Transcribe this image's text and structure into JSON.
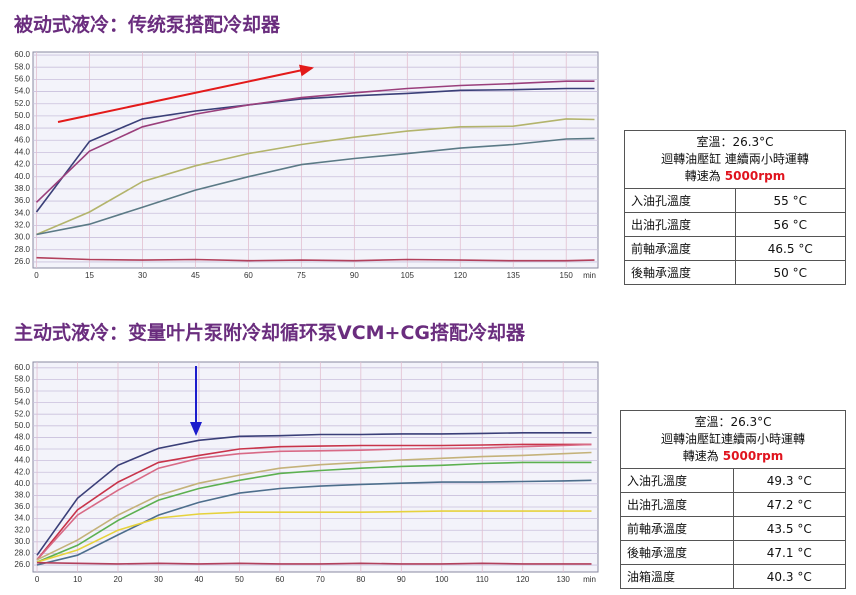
{
  "chart_data": [
    {
      "type": "line",
      "title": "被动式液冷：传统泵搭配冷却器",
      "xlabel": "min",
      "x": [
        0,
        15,
        30,
        45,
        60,
        75,
        90,
        105,
        120,
        135,
        150,
        158
      ],
      "xlim": [
        -1,
        159
      ],
      "xticks": [
        0,
        15,
        30,
        45,
        60,
        75,
        90,
        105,
        120,
        135,
        150
      ],
      "ylim": [
        25,
        60.5
      ],
      "yticks": [
        {
          "value": 26,
          "label": "26.0"
        },
        {
          "value": 28,
          "label": "28.0"
        },
        {
          "value": 30,
          "label": "30.0"
        },
        {
          "value": 32,
          "label": "32.0"
        },
        {
          "value": 34,
          "label": "34.0"
        },
        {
          "value": 36,
          "label": "36.0"
        },
        {
          "value": 38,
          "label": "38.0"
        },
        {
          "value": 40,
          "label": "40.0"
        },
        {
          "value": 42,
          "label": "42.0"
        },
        {
          "value": 44,
          "label": "44.0"
        },
        {
          "value": 46,
          "label": "46.0"
        },
        {
          "value": 48,
          "label": "48.0"
        },
        {
          "value": 50,
          "label": "50.0"
        },
        {
          "value": 52,
          "label": "52.0"
        },
        {
          "value": 54,
          "label": "54.0"
        },
        {
          "value": 56,
          "label": "56.0"
        },
        {
          "value": 58,
          "label": "58.0"
        },
        {
          "value": 60,
          "label": "60.0"
        }
      ],
      "grid": true,
      "series": [
        {
          "color": "#3a3f78",
          "values": [
            34.2,
            45.8,
            49.5,
            50.8,
            51.8,
            52.8,
            53.3,
            53.7,
            54.2,
            54.3,
            54.5,
            54.5
          ]
        },
        {
          "color": "#9a3f7c",
          "values": [
            35.8,
            44.2,
            48.2,
            50.3,
            51.8,
            53,
            53.8,
            54.5,
            55,
            55.3,
            55.7,
            55.7
          ]
        },
        {
          "color": "#b3b46c",
          "values": [
            30.5,
            34.2,
            39.2,
            41.8,
            43.8,
            45.3,
            46.5,
            47.5,
            48.2,
            48.3,
            49.5,
            49.4
          ]
        },
        {
          "color": "#5b7a86",
          "values": [
            30.5,
            32.2,
            35,
            37.8,
            40,
            42,
            43,
            43.8,
            44.7,
            45.3,
            46.2,
            46.3
          ]
        },
        {
          "color": "#b2405c",
          "values": [
            26.7,
            26.4,
            26.3,
            26.4,
            26.2,
            26.3,
            26.2,
            26.4,
            26.3,
            26.2,
            26.2,
            26.3
          ]
        }
      ]
    },
    {
      "type": "line",
      "title": "主动式液冷：变量叶片泵附冷却循环泵VCM+CG搭配冷却器",
      "xlabel": "min",
      "x": [
        0,
        10,
        20,
        30,
        40,
        50,
        60,
        70,
        80,
        90,
        100,
        110,
        120,
        130,
        137
      ],
      "xlim": [
        -1,
        138.6
      ],
      "xticks": [
        0,
        10,
        20,
        30,
        40,
        50,
        60,
        70,
        80,
        90,
        100,
        110,
        120,
        130
      ],
      "ylim": [
        24.8,
        61
      ],
      "yticks": [
        {
          "value": 26,
          "label": "26.0"
        },
        {
          "value": 28,
          "label": "28.0"
        },
        {
          "value": 30,
          "label": "30.0"
        },
        {
          "value": 32,
          "label": "32.0"
        },
        {
          "value": 34,
          "label": "34.0"
        },
        {
          "value": 36,
          "label": "36.0"
        },
        {
          "value": 38,
          "label": "38.0"
        },
        {
          "value": 40,
          "label": "40.0"
        },
        {
          "value": 42,
          "label": "42.0"
        },
        {
          "value": 44,
          "label": "44.0"
        },
        {
          "value": 46,
          "label": "46.0"
        },
        {
          "value": 48,
          "label": "48.0"
        },
        {
          "value": 50,
          "label": "50.0"
        },
        {
          "value": 52,
          "label": "52.0"
        },
        {
          "value": 54,
          "label": "54.0"
        },
        {
          "value": 56,
          "label": "56.0"
        },
        {
          "value": 58,
          "label": "58.0"
        },
        {
          "value": 60,
          "label": "60.0"
        }
      ],
      "grid": true,
      "series": [
        {
          "color": "#3a3f78",
          "values": [
            27.7,
            37.5,
            43.2,
            46.1,
            47.5,
            48.2,
            48.3,
            48.5,
            48.5,
            48.6,
            48.6,
            48.7,
            48.8,
            48.8,
            48.8
          ]
        },
        {
          "color": "#c8344a",
          "values": [
            26.9,
            35.5,
            40.3,
            43.7,
            44.9,
            46,
            46.4,
            46.5,
            46.6,
            46.6,
            46.6,
            46.7,
            46.8,
            46.8,
            46.8
          ]
        },
        {
          "color": "#d86a86",
          "values": [
            26.9,
            34.6,
            38.9,
            42.7,
            44.4,
            45.2,
            45.6,
            45.7,
            45.8,
            46,
            46.1,
            46.2,
            46.4,
            46.6,
            46.8
          ]
        },
        {
          "color": "#5cb050",
          "values": [
            26.5,
            29.4,
            33.7,
            37.2,
            39.2,
            40.6,
            41.8,
            42.3,
            42.7,
            43,
            43.2,
            43.5,
            43.7,
            43.7,
            43.7
          ]
        },
        {
          "color": "#c4b27a",
          "values": [
            26.9,
            30.3,
            34.6,
            38,
            40.1,
            41.5,
            42.7,
            43.3,
            43.7,
            44.1,
            44.4,
            44.7,
            44.9,
            45.2,
            45.4
          ]
        },
        {
          "color": "#4d6e8c",
          "values": [
            26,
            27.7,
            31.2,
            34.6,
            36.8,
            38.4,
            39.2,
            39.6,
            39.9,
            40.1,
            40.3,
            40.3,
            40.4,
            40.5,
            40.6
          ]
        },
        {
          "color": "#e6d23c",
          "values": [
            26.5,
            28.6,
            32,
            34.1,
            34.8,
            35.1,
            35.1,
            35.1,
            35.1,
            35.2,
            35.3,
            35.3,
            35.3,
            35.3,
            35.3
          ]
        },
        {
          "color": "#b2405c",
          "values": [
            26.4,
            26.3,
            26.2,
            26.3,
            26.2,
            26.3,
            26.2,
            26.2,
            26.3,
            26.2,
            26.2,
            26.3,
            26.2,
            26.2,
            26.2
          ]
        }
      ]
    }
  ],
  "tables": [
    {
      "header": {
        "lines": [
          "室溫：26.3°C",
          "迴轉油壓缸 連續兩小時運轉"
        ],
        "speed_label": "轉速為",
        "speed": "5000rpm"
      },
      "rows": [
        [
          "入油孔溫度",
          "55 °C"
        ],
        [
          "出油孔溫度",
          "56 °C"
        ],
        [
          "前軸承溫度",
          "46.5 °C"
        ],
        [
          "後軸承溫度",
          "50 °C"
        ]
      ]
    },
    {
      "header": {
        "lines": [
          "室溫：26.3°C",
          "迴轉油壓缸連續兩小時運轉"
        ],
        "speed_label": "轉速為",
        "speed": "5000rpm"
      },
      "rows": [
        [
          "入油孔溫度",
          "49.3 °C"
        ],
        [
          "出油孔溫度",
          "47.2 °C"
        ],
        [
          "前軸承溫度",
          "43.5 °C"
        ],
        [
          "後軸承溫度",
          "47.1 °C"
        ],
        [
          "油箱溫度",
          "40.3 °C"
        ]
      ]
    }
  ]
}
